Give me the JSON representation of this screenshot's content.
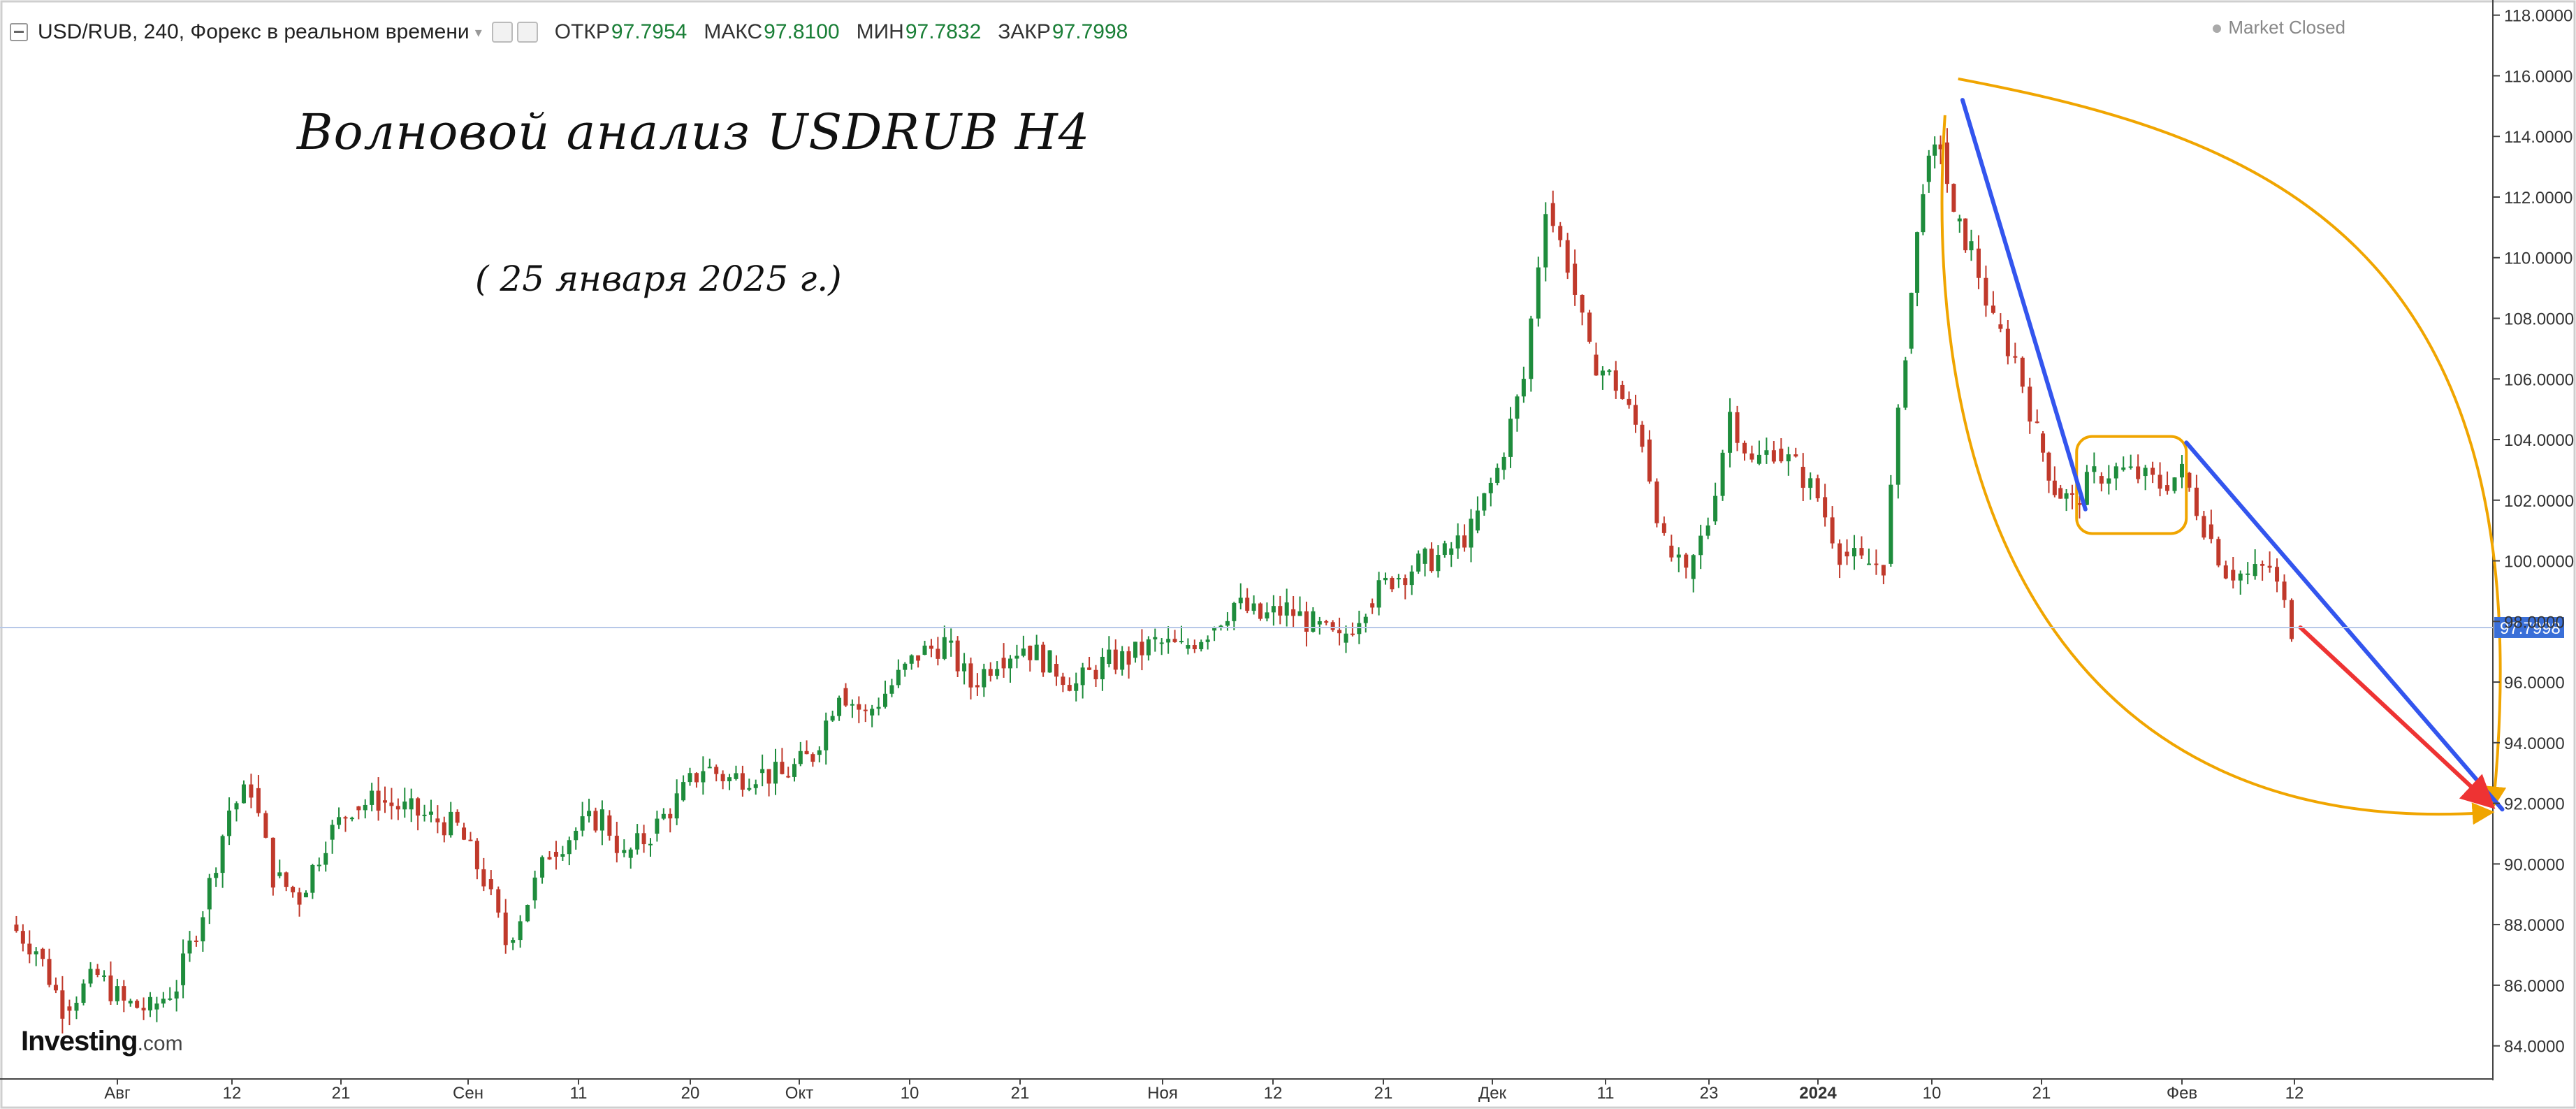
{
  "header": {
    "symbol": "USD/RUB, 240, Форекс в реальном времени",
    "open_label": "ОТКР",
    "open_value": "97.7954",
    "high_label": "МАКС",
    "high_value": "97.8100",
    "low_label": "МИН",
    "low_value": "97.7832",
    "close_label": "ЗАКР",
    "close_value": "97.7998"
  },
  "market_status": "Market Closed",
  "annotation": {
    "title": "Волновой анализ USDRUB H4",
    "date": "( 25 января 2025 г.)"
  },
  "logo": {
    "name": "Investing",
    "suffix": ".com"
  },
  "colors": {
    "up": "#1e8c3c",
    "down": "#c0392b",
    "wave": "#f0a500",
    "trend": "#3355ee",
    "target": "#ee3333",
    "price_line": "#b7c8e8",
    "price_tag": "#3a6fd8"
  },
  "chart_data": {
    "type": "candlestick",
    "symbol": "USD/RUB",
    "timeframe": "240",
    "ylim": [
      83,
      118.5
    ],
    "y_ticks": [
      "84.0000",
      "86.0000",
      "88.0000",
      "90.0000",
      "92.0000",
      "94.0000",
      "96.0000",
      "98.0000",
      "100.0000",
      "102.0000",
      "104.0000",
      "106.0000",
      "108.0000",
      "110.0000",
      "112.0000",
      "114.0000",
      "116.0000",
      "118.0000"
    ],
    "x_labels": [
      "Авг",
      "12",
      "21",
      "Сен",
      "11",
      "20",
      "Окт",
      "10",
      "21",
      "Ноя",
      "12",
      "21",
      "Дек",
      "11",
      "23",
      "2024",
      "10",
      "21",
      "Фев",
      "12"
    ],
    "last_price": "97.7998",
    "price_path": [
      {
        "x": 0.0,
        "y": 88.0
      },
      {
        "x": 0.6,
        "y": 87.2
      },
      {
        "x": 1.2,
        "y": 85.3
      },
      {
        "x": 2.0,
        "y": 86.3
      },
      {
        "x": 2.6,
        "y": 85.4
      },
      {
        "x": 3.2,
        "y": 85.2
      },
      {
        "x": 3.8,
        "y": 86.0
      },
      {
        "x": 4.4,
        "y": 88.5
      },
      {
        "x": 5.0,
        "y": 91.8
      },
      {
        "x": 5.5,
        "y": 92.5
      },
      {
        "x": 6.0,
        "y": 89.6
      },
      {
        "x": 6.6,
        "y": 88.9
      },
      {
        "x": 7.2,
        "y": 90.8
      },
      {
        "x": 7.8,
        "y": 91.9
      },
      {
        "x": 8.4,
        "y": 92.1
      },
      {
        "x": 9.0,
        "y": 91.8
      },
      {
        "x": 9.6,
        "y": 91.5
      },
      {
        "x": 10.2,
        "y": 91.2
      },
      {
        "x": 10.8,
        "y": 89.5
      },
      {
        "x": 11.3,
        "y": 87.4
      },
      {
        "x": 11.8,
        "y": 88.8
      },
      {
        "x": 12.3,
        "y": 90.4
      },
      {
        "x": 12.9,
        "y": 91.1
      },
      {
        "x": 13.5,
        "y": 91.6
      },
      {
        "x": 14.0,
        "y": 90.2
      },
      {
        "x": 14.6,
        "y": 91.0
      },
      {
        "x": 15.2,
        "y": 92.1
      },
      {
        "x": 15.8,
        "y": 93.2
      },
      {
        "x": 16.4,
        "y": 92.8
      },
      {
        "x": 17.0,
        "y": 93.0
      },
      {
        "x": 17.6,
        "y": 92.9
      },
      {
        "x": 18.3,
        "y": 93.6
      },
      {
        "x": 18.9,
        "y": 95.8
      },
      {
        "x": 19.5,
        "y": 94.9
      },
      {
        "x": 20.1,
        "y": 95.9
      },
      {
        "x": 20.7,
        "y": 96.9
      },
      {
        "x": 21.3,
        "y": 97.3
      },
      {
        "x": 21.9,
        "y": 95.9
      },
      {
        "x": 22.5,
        "y": 96.8
      },
      {
        "x": 23.1,
        "y": 97.2
      },
      {
        "x": 23.7,
        "y": 96.6
      },
      {
        "x": 24.3,
        "y": 95.9
      },
      {
        "x": 24.9,
        "y": 96.6
      },
      {
        "x": 25.5,
        "y": 96.8
      },
      {
        "x": 26.1,
        "y": 97.3
      },
      {
        "x": 26.7,
        "y": 97.1
      },
      {
        "x": 27.3,
        "y": 97.7
      },
      {
        "x": 27.9,
        "y": 98.6
      },
      {
        "x": 28.5,
        "y": 98.1
      },
      {
        "x": 29.1,
        "y": 98.4
      },
      {
        "x": 29.7,
        "y": 97.9
      },
      {
        "x": 30.3,
        "y": 97.3
      },
      {
        "x": 30.9,
        "y": 98.6
      },
      {
        "x": 31.5,
        "y": 99.4
      },
      {
        "x": 32.1,
        "y": 99.9
      },
      {
        "x": 32.7,
        "y": 100.2
      },
      {
        "x": 33.3,
        "y": 101.0
      },
      {
        "x": 33.9,
        "y": 103.0
      },
      {
        "x": 34.5,
        "y": 106.0
      },
      {
        "x": 35.0,
        "y": 111.8
      },
      {
        "x": 35.5,
        "y": 109.8
      },
      {
        "x": 36.0,
        "y": 106.8
      },
      {
        "x": 36.6,
        "y": 105.8
      },
      {
        "x": 37.2,
        "y": 104.0
      },
      {
        "x": 37.7,
        "y": 100.5
      },
      {
        "x": 38.2,
        "y": 99.4
      },
      {
        "x": 38.7,
        "y": 101.3
      },
      {
        "x": 39.2,
        "y": 104.9
      },
      {
        "x": 39.7,
        "y": 103.2
      },
      {
        "x": 40.2,
        "y": 103.7
      },
      {
        "x": 40.7,
        "y": 103.1
      },
      {
        "x": 41.2,
        "y": 102.1
      },
      {
        "x": 41.7,
        "y": 100.3
      },
      {
        "x": 42.2,
        "y": 99.9
      },
      {
        "x": 42.7,
        "y": 99.9
      },
      {
        "x": 43.2,
        "y": 107.0
      },
      {
        "x": 43.6,
        "y": 112.5
      },
      {
        "x": 44.0,
        "y": 113.8
      },
      {
        "x": 44.3,
        "y": 111.2
      },
      {
        "x": 44.7,
        "y": 110.3
      },
      {
        "x": 45.2,
        "y": 107.8
      },
      {
        "x": 45.7,
        "y": 106.7
      },
      {
        "x": 46.2,
        "y": 104.2
      },
      {
        "x": 46.6,
        "y": 102.4
      },
      {
        "x": 47.0,
        "y": 101.9
      },
      {
        "x": 47.5,
        "y": 102.8
      },
      {
        "x": 48.0,
        "y": 103.0
      },
      {
        "x": 48.5,
        "y": 102.8
      },
      {
        "x": 49.0,
        "y": 102.5
      },
      {
        "x": 49.5,
        "y": 102.9
      },
      {
        "x": 50.0,
        "y": 101.2
      },
      {
        "x": 50.5,
        "y": 99.7
      },
      {
        "x": 51.0,
        "y": 99.5
      },
      {
        "x": 51.5,
        "y": 99.8
      },
      {
        "x": 52.0,
        "y": 97.8
      }
    ],
    "drawings": [
      {
        "type": "arc",
        "name": "wave-arc-outer",
        "color": "#f0a500",
        "from": {
          "x": 44.4,
          "y": 115.9
        },
        "to": {
          "x": 56.6,
          "y": 92.0
        }
      },
      {
        "type": "arc",
        "name": "wave-arc-inner",
        "color": "#f0a500",
        "from": {
          "x": 44.1,
          "y": 114.7
        },
        "to": {
          "x": 56.5,
          "y": 91.7
        }
      },
      {
        "type": "rounded-rect",
        "name": "consolidation-box",
        "color": "#f0a500",
        "from": {
          "x": 47.1,
          "y": 104.1
        },
        "to": {
          "x": 49.6,
          "y": 100.9
        }
      },
      {
        "type": "line",
        "name": "trend-line-1",
        "color": "#3355ee",
        "from": {
          "x": 44.5,
          "y": 115.2
        },
        "to": {
          "x": 47.3,
          "y": 101.7
        }
      },
      {
        "type": "line",
        "name": "trend-line-2",
        "color": "#3355ee",
        "from": {
          "x": 49.6,
          "y": 103.9
        },
        "to": {
          "x": 56.8,
          "y": 91.8
        }
      },
      {
        "type": "arrow",
        "name": "target-arrow",
        "color": "#ee3333",
        "from": {
          "x": 52.2,
          "y": 97.8
        },
        "to": {
          "x": 56.5,
          "y": 92.0
        }
      }
    ]
  }
}
